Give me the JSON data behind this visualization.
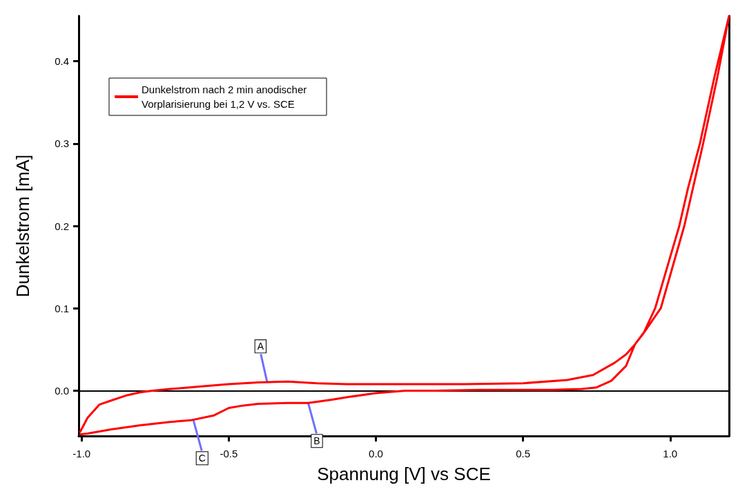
{
  "chart_data": {
    "type": "line",
    "xlabel": "Spannung [V] vs SCE",
    "ylabel": "Dunkelstrom [mA]",
    "xlim": [
      -1.01,
      1.2
    ],
    "ylim": [
      -0.055,
      0.455
    ],
    "xticks": [
      {
        "value": -1,
        "label": "-1.0"
      },
      {
        "value": -0.5,
        "label": "-0.5"
      },
      {
        "value": 0,
        "label": "0.0"
      },
      {
        "value": 0.5,
        "label": "0.5"
      },
      {
        "value": 1,
        "label": "1.0"
      }
    ],
    "yticks": [
      {
        "value": 0,
        "label": "0.0"
      },
      0.1,
      0.2,
      0.3,
      0.4
    ],
    "grid": false,
    "legend": "top left",
    "marker": "none",
    "line_style": "solid",
    "ref_lines": [
      {
        "axis": "y",
        "value": 0,
        "color": "#000000"
      }
    ],
    "annotations": [
      {
        "text": "A",
        "x": -0.37,
        "y": 0.011
      },
      {
        "text": "B",
        "x": -0.23,
        "y": -0.015
      },
      {
        "text": "C",
        "x": -0.62,
        "y": -0.036
      }
    ],
    "series": [
      {
        "name": "Dunkelstrom nach 2 min anodischer Vorplarisierung bei 1,2 V vs. SCE",
        "color": "#ff0000",
        "x": [
          -1.005,
          -0.98,
          -0.9,
          -0.8,
          -0.7,
          -0.63,
          -0.55,
          -0.5,
          -0.45,
          -0.4,
          -0.3,
          -0.23,
          -0.15,
          -0.1,
          0.0,
          0.1,
          0.2,
          0.35,
          0.5,
          0.6,
          0.7,
          0.75,
          0.8,
          0.85,
          0.88,
          0.92,
          0.968,
          1.0,
          1.048,
          1.08,
          1.112,
          1.16,
          1.2,
          1.15,
          1.101,
          1.06,
          1.031,
          0.99,
          0.949,
          0.91,
          0.88,
          0.85,
          0.812,
          0.738,
          0.65,
          0.5,
          0.3,
          0.1,
          0.0,
          -0.1,
          -0.2,
          -0.3,
          -0.4,
          -0.5,
          -0.6,
          -0.7,
          -0.76,
          -0.8,
          -0.85,
          -0.9,
          -0.94,
          -0.98,
          -1.005
        ],
        "values": [
          -0.053,
          -0.052,
          -0.047,
          -0.042,
          -0.038,
          -0.036,
          -0.03,
          -0.021,
          -0.018,
          -0.016,
          -0.015,
          -0.015,
          -0.011,
          -0.008,
          -0.003,
          0.0,
          0.0,
          0.001,
          0.001,
          0.001,
          0.002,
          0.004,
          0.012,
          0.03,
          0.056,
          0.075,
          0.1,
          0.14,
          0.2,
          0.25,
          0.3,
          0.38,
          0.455,
          0.38,
          0.3,
          0.245,
          0.2,
          0.15,
          0.1,
          0.07,
          0.056,
          0.044,
          0.034,
          0.019,
          0.013,
          0.009,
          0.008,
          0.008,
          0.008,
          0.008,
          0.009,
          0.011,
          0.01,
          0.008,
          0.005,
          0.002,
          0.0,
          -0.002,
          -0.006,
          -0.012,
          -0.017,
          -0.033,
          -0.05
        ]
      }
    ]
  }
}
